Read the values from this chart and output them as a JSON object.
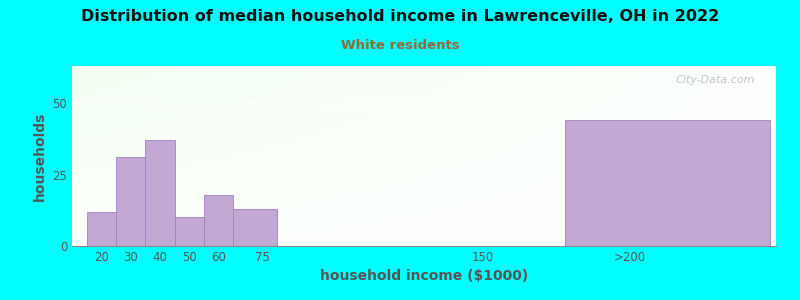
{
  "title": "Distribution of median household income in Lawrenceville, OH in 2022",
  "subtitle": "White residents",
  "subtitle_color": "#996633",
  "xlabel": "household income ($1000)",
  "ylabel": "households",
  "background_color": "#00FFFF",
  "bar_color": "#c4a8d4",
  "bar_edge_color": "#a080c0",
  "watermark": "City-Data.com",
  "bars": [
    {
      "label": "20",
      "x_left": 15,
      "x_right": 25,
      "height": 12
    },
    {
      "label": "30",
      "x_left": 25,
      "x_right": 35,
      "height": 31
    },
    {
      "label": "40",
      "x_left": 35,
      "x_right": 45,
      "height": 37
    },
    {
      "label": "50",
      "x_left": 45,
      "x_right": 55,
      "height": 10
    },
    {
      "label": "60",
      "x_left": 55,
      "x_right": 65,
      "height": 18
    },
    {
      "label": "75",
      "x_left": 65,
      "x_right": 80,
      "height": 13
    },
    {
      "label": ">200",
      "x_left": 178,
      "x_right": 248,
      "height": 44
    }
  ],
  "xticks": [
    20,
    30,
    40,
    50,
    60,
    75,
    150,
    200
  ],
  "xtick_labels": [
    "20",
    "30",
    "40",
    "50",
    "60",
    "75",
    "150",
    ">200"
  ],
  "yticks": [
    0,
    25,
    50
  ],
  "ylim": [
    0,
    63
  ],
  "xlim": [
    10,
    250
  ]
}
